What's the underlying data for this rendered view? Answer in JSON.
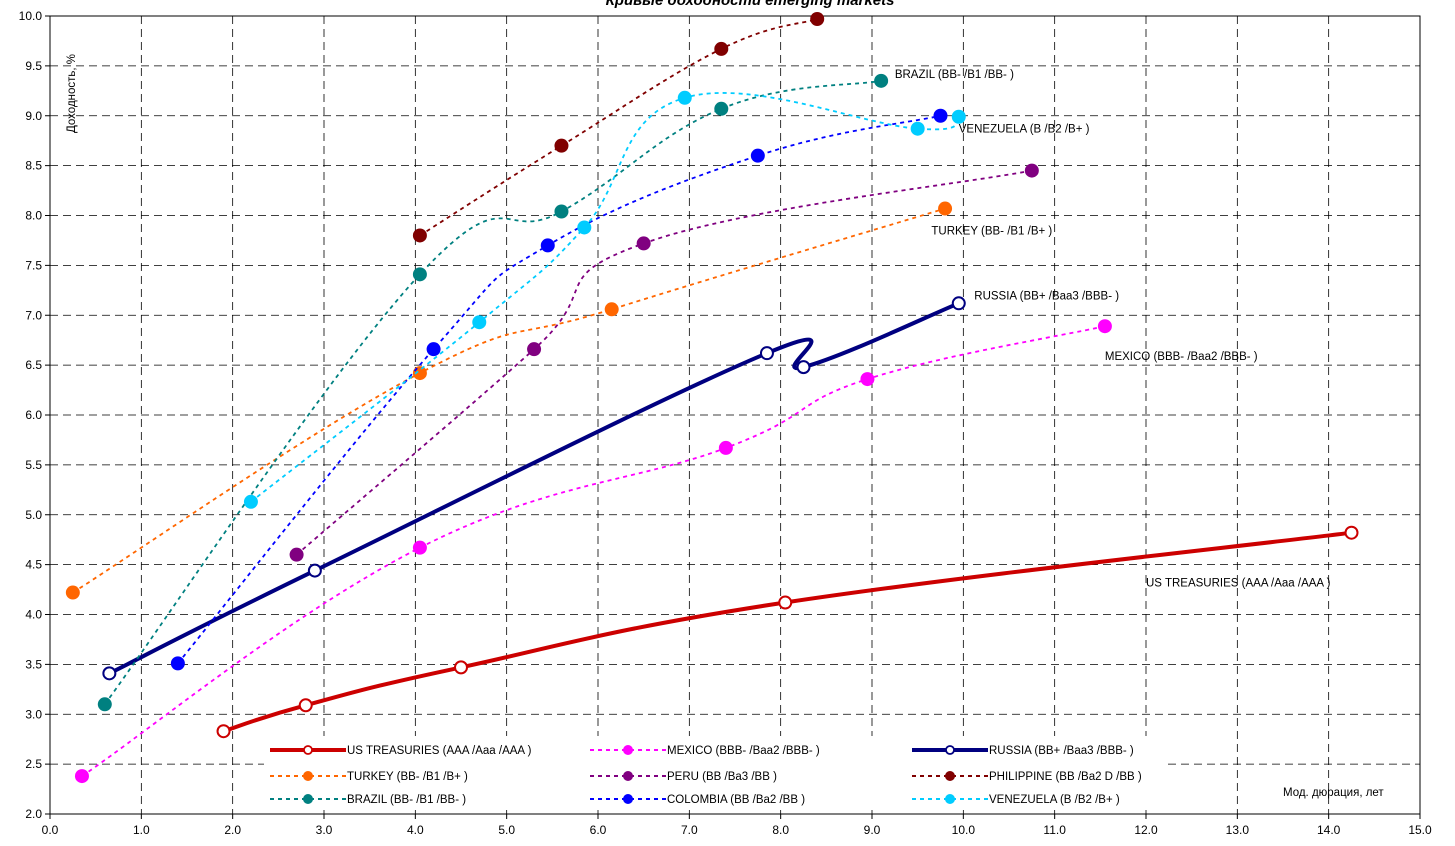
{
  "chart_data": {
    "type": "line",
    "title": "Кривые доходности emerging markets",
    "xlabel": "Мод. дюрация, лет",
    "ylabel": "Доходность, %",
    "xlim": [
      0.0,
      15.0
    ],
    "ylim": [
      2.0,
      10.0
    ],
    "x_ticks": [
      "0.0",
      "1.0",
      "2.0",
      "3.0",
      "4.0",
      "5.0",
      "6.0",
      "7.0",
      "8.0",
      "9.0",
      "10.0",
      "11.0",
      "12.0",
      "13.0",
      "14.0",
      "15.0"
    ],
    "y_ticks": [
      "2.0",
      "2.5",
      "3.0",
      "3.5",
      "4.0",
      "4.5",
      "5.0",
      "5.5",
      "6.0",
      "6.5",
      "7.0",
      "7.5",
      "8.0",
      "8.5",
      "9.0",
      "9.5",
      "10.0"
    ],
    "grid": true,
    "legend_position": "bottom-left",
    "series": [
      {
        "name": "US TREASURIES (AAA /Aaa /AAA )",
        "color": "#cc0000",
        "style": "solid-thick",
        "marker": "hollow",
        "points": [
          [
            1.9,
            2.83
          ],
          [
            2.8,
            3.09
          ],
          [
            4.5,
            3.47
          ],
          [
            8.05,
            4.12
          ],
          [
            14.25,
            4.82
          ]
        ]
      },
      {
        "name": "MEXICO (BBB- /Baa2 /BBB- )",
        "color": "#ff00ff",
        "style": "dotted",
        "marker": "filled",
        "points": [
          [
            0.35,
            2.38
          ],
          [
            4.05,
            4.67
          ],
          [
            7.4,
            5.67
          ],
          [
            8.95,
            6.36
          ],
          [
            11.55,
            6.89
          ]
        ]
      },
      {
        "name": "RUSSIA (BB+ /Baa3 /BBB- )",
        "color": "#000080",
        "style": "solid-thick",
        "marker": "hollow",
        "points": [
          [
            0.65,
            3.41
          ],
          [
            2.9,
            4.44
          ],
          [
            7.85,
            6.62
          ],
          [
            8.25,
            6.48
          ],
          [
            9.95,
            7.12
          ]
        ]
      },
      {
        "name": "TURKEY (BB- /B1 /B+ )",
        "color": "#ff6600",
        "style": "dotted",
        "marker": "filled",
        "points": [
          [
            0.25,
            4.22
          ],
          [
            4.05,
            6.42
          ],
          [
            6.15,
            7.06
          ],
          [
            9.8,
            8.07
          ]
        ]
      },
      {
        "name": "PERU (BB /Ba3 /BB )",
        "color": "#800080",
        "style": "dotted",
        "marker": "filled",
        "points": [
          [
            2.7,
            4.6
          ],
          [
            5.3,
            6.66
          ],
          [
            6.5,
            7.72
          ],
          [
            10.75,
            8.45
          ]
        ]
      },
      {
        "name": "PHILIPPINE (BB /Ba2 D /BB )",
        "color": "#800000",
        "style": "dotted",
        "marker": "filled",
        "points": [
          [
            4.05,
            7.8
          ],
          [
            5.6,
            8.7
          ],
          [
            7.35,
            9.67
          ],
          [
            8.4,
            9.97
          ]
        ]
      },
      {
        "name": "BRAZIL (BB- /B1 /BB- )",
        "color": "#008080",
        "style": "dotted",
        "marker": "filled",
        "points": [
          [
            0.6,
            3.1
          ],
          [
            4.05,
            7.41
          ],
          [
            5.6,
            8.04
          ],
          [
            7.35,
            9.07
          ],
          [
            9.1,
            9.35
          ]
        ]
      },
      {
        "name": "COLOMBIA (BB /Ba2 /BB )",
        "color": "#0000ff",
        "style": "dotted",
        "marker": "filled",
        "points": [
          [
            1.4,
            3.51
          ],
          [
            4.2,
            6.66
          ],
          [
            5.45,
            7.7
          ],
          [
            7.75,
            8.6
          ],
          [
            9.75,
            9.0
          ]
        ]
      },
      {
        "name": "VENEZUELA (B /B2 /B+ )",
        "color": "#00ccff",
        "style": "dotted",
        "marker": "filled",
        "points": [
          [
            2.2,
            5.13
          ],
          [
            4.7,
            6.93
          ],
          [
            5.85,
            7.88
          ],
          [
            6.95,
            9.18
          ],
          [
            9.5,
            8.87
          ],
          [
            9.95,
            8.99
          ]
        ]
      }
    ],
    "annotations": [
      {
        "text": "BRAZIL (BB- /B1 /BB- )",
        "x": 9.25,
        "y": 9.38
      },
      {
        "text": "VENEZUELA (B /B2 /B+ )",
        "x": 9.95,
        "y": 8.83
      },
      {
        "text": "TURKEY (BB- /B1 /B+ )",
        "x": 9.65,
        "y": 7.81
      },
      {
        "text": "RUSSIA (BB+ /Baa3 /BBB- )",
        "x": 10.12,
        "y": 7.16
      },
      {
        "text": "MEXICO (BBB- /Baa2 /BBB- )",
        "x": 11.55,
        "y": 6.55
      },
      {
        "text": "US TREASURIES (AAA /Aaa /AAA )",
        "x": 12.0,
        "y": 4.28
      },
      {
        "text": "Мод. дюрация, лет",
        "x": 13.5,
        "y": 2.18
      }
    ]
  }
}
